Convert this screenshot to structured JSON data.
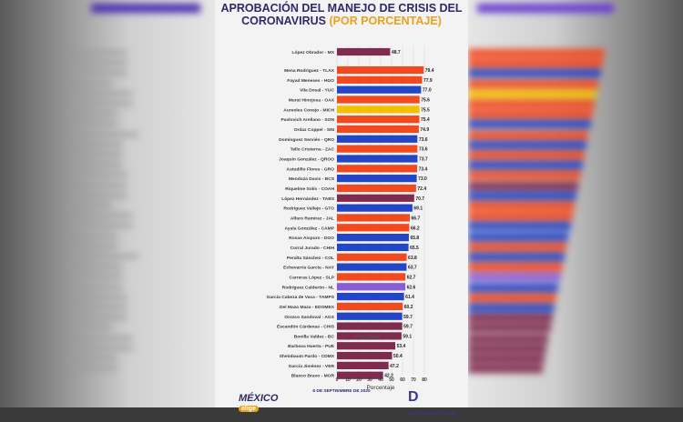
{
  "header": {
    "title_main": "APROBACIÓN DEL MANEJO DE CRISIS DEL CORONAVIRUS",
    "title_highlight": "(POR PORCENTAJE)"
  },
  "footer": {
    "logo_text": "MÉXICO",
    "logo_badge": "elige",
    "date": "6 DE SEPTIEMBRE DE 2020",
    "brand_letter": "D",
    "brand_text": "INVESTIGACIONES DIGITALES"
  },
  "colors": {
    "title": "#2e2a6a",
    "highlight": "#e8a21c",
    "maroon": "#7f2b4e",
    "blue": "#2346c6",
    "orange": "#f2491f",
    "yellow": "#f5c000",
    "magenta": "#a0266e",
    "purple": "#8a5cd8"
  },
  "chart_data": {
    "type": "bar",
    "orientation": "horizontal",
    "title": "APROBACIÓN DEL MANEJO DE CRISIS DEL CORONAVIRUS (POR PORCENTAJE)",
    "xlabel": "Porcentaje",
    "ylabel": "",
    "xlim": [
      0,
      80
    ],
    "xticks": [
      0,
      10,
      20,
      30,
      40,
      50,
      60,
      70,
      80
    ],
    "grid": true,
    "bars": [
      {
        "label": "López Obrador - MX",
        "value": 48.7,
        "value_label": "48.7",
        "color": "maroon"
      },
      {
        "label": "Mena Rodríguez - TLAX",
        "value": 79.4,
        "value_label": "79.4",
        "color": "orange"
      },
      {
        "label": "Fayad Meneses - HGO",
        "value": 77.9,
        "value_label": "77.9",
        "color": "orange"
      },
      {
        "label": "Vila Dosal - YUC",
        "value": 77.0,
        "value_label": "77.0",
        "color": "blue"
      },
      {
        "label": "Murat Hinojosa - OAX",
        "value": 75.6,
        "value_label": "75.6",
        "color": "orange"
      },
      {
        "label": "Aureoles Conejo - MICH",
        "value": 75.5,
        "value_label": "75.5",
        "color": "yellow"
      },
      {
        "label": "Pavlovich Arellano - SON",
        "value": 75.4,
        "value_label": "75.4",
        "color": "orange"
      },
      {
        "label": "Ordaz Coppel - SIN",
        "value": 74.9,
        "value_label": "74.9",
        "color": "orange"
      },
      {
        "label": "Domínguez Servién - QRO",
        "value": 73.6,
        "value_label": "73.6",
        "color": "blue"
      },
      {
        "label": "Tello Cristerna - ZAC",
        "value": 73.6,
        "value_label": "73.6",
        "color": "orange"
      },
      {
        "label": "Joaquín González - QROO",
        "value": 73.7,
        "value_label": "73.7",
        "color": "blue"
      },
      {
        "label": "Astudillo Flores - GRO",
        "value": 73.4,
        "value_label": "73.4",
        "color": "orange"
      },
      {
        "label": "Mendoza Davis - BCS",
        "value": 73.0,
        "value_label": "73.0",
        "color": "blue"
      },
      {
        "label": "Riquelme Solís - COAH",
        "value": 72.4,
        "value_label": "72.4",
        "color": "orange"
      },
      {
        "label": "López Hernández - TABS",
        "value": 70.7,
        "value_label": "70.7",
        "color": "maroon"
      },
      {
        "label": "Rodríguez Vallejo - GTO",
        "value": 69.1,
        "value_label": "69.1",
        "color": "blue"
      },
      {
        "label": "Alfaro Ramírez - JAL",
        "value": 66.7,
        "value_label": "66.7",
        "color": "orange"
      },
      {
        "label": "Ayala González - CAMP",
        "value": 66.2,
        "value_label": "66.2",
        "color": "orange"
      },
      {
        "label": "Rosas Aispuro - DGO",
        "value": 65.8,
        "value_label": "65.8",
        "color": "blue"
      },
      {
        "label": "Corral Jurado - CHIH",
        "value": 65.5,
        "value_label": "65.5",
        "color": "blue"
      },
      {
        "label": "Peralta Sánchez - COL",
        "value": 63.8,
        "value_label": "63.8",
        "color": "orange"
      },
      {
        "label": "Echevarría García - NAY",
        "value": 63.7,
        "value_label": "63.7",
        "color": "blue"
      },
      {
        "label": "Carreras López - SLP",
        "value": 62.7,
        "value_label": "62.7",
        "color": "orange"
      },
      {
        "label": "Rodríguez Calderón - NL",
        "value": 62.6,
        "value_label": "62.6",
        "color": "purple"
      },
      {
        "label": "García Cabeza de Vaca - TAMPS",
        "value": 61.4,
        "value_label": "61.4",
        "color": "blue"
      },
      {
        "label": "Del Mazo Maza - EDOMEX",
        "value": 60.2,
        "value_label": "60.2",
        "color": "orange"
      },
      {
        "label": "Orozco Sandoval - AGS",
        "value": 59.7,
        "value_label": "59.7",
        "color": "blue"
      },
      {
        "label": "Escandón Cárdenas - CHIS",
        "value": 59.7,
        "value_label": "59.7",
        "color": "maroon"
      },
      {
        "label": "Bonilla Valdez - BC",
        "value": 59.1,
        "value_label": "59.1",
        "color": "maroon"
      },
      {
        "label": "Barbosa Huerta - PUE",
        "value": 53.4,
        "value_label": "53.4",
        "color": "maroon"
      },
      {
        "label": "Sheinbaum Pardo - CDMX",
        "value": 50.4,
        "value_label": "50.4",
        "color": "maroon"
      },
      {
        "label": "García Jiménez - VER",
        "value": 47.2,
        "value_label": "47.2",
        "color": "maroon"
      },
      {
        "label": "Blanco Bravo - MOR",
        "value": 42.2,
        "value_label": "42.2",
        "color": "maroon"
      }
    ]
  }
}
